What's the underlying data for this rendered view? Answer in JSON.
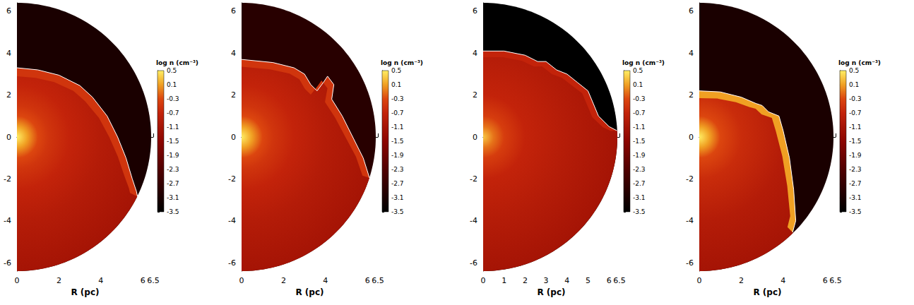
{
  "chart_data": [
    {
      "type": "density_map",
      "x_label": "R (pc)",
      "xlim": [
        0,
        6.5
      ],
      "xticks": [
        0,
        2,
        4,
        6
      ],
      "ylim": [
        -6.4,
        6.4
      ],
      "yticks": [
        -6,
        -4,
        -2,
        0,
        2,
        4,
        6
      ],
      "domain_radius": 6.4,
      "colorbar": {
        "label": "log n (cm⁻³)",
        "range": [
          -3.5,
          0.5
        ],
        "ticks": [
          0.5,
          0.1,
          -0.3,
          -0.7,
          -1.1,
          -1.5,
          -1.9,
          -2.3,
          -2.7,
          -3.1,
          -3.5
        ]
      },
      "ambient": -3.1,
      "shell": -0.5,
      "shell_thickness": 0.4,
      "profile": [
        [
          0,
          0.5
        ],
        [
          0.5,
          0.1
        ],
        [
          1,
          -0.3
        ],
        [
          1.5,
          -0.5
        ],
        [
          2.5,
          -0.7
        ],
        [
          4,
          -0.9
        ],
        [
          6.4,
          -1.1
        ]
      ],
      "front": [
        [
          0,
          3.3
        ],
        [
          1,
          3.2
        ],
        [
          2,
          2.95
        ],
        [
          3,
          2.45
        ],
        [
          3.6,
          1.9
        ],
        [
          4.3,
          1.0
        ],
        [
          4.8,
          0
        ],
        [
          5.2,
          -1
        ],
        [
          5.5,
          -2
        ],
        [
          5.7,
          -2.6
        ],
        [
          5.75,
          -2.85
        ]
      ]
    },
    {
      "type": "density_map",
      "x_label": "R (pc)",
      "xlim": [
        0,
        6.5
      ],
      "xticks": [
        0,
        2,
        4,
        6
      ],
      "ylim": [
        -6.4,
        6.4
      ],
      "yticks": [
        -6,
        -4,
        -2,
        0,
        2,
        4,
        6
      ],
      "domain_radius": 6.4,
      "colorbar": {
        "label": "log n (cm⁻³)",
        "range": [
          -3.5,
          0.5
        ],
        "ticks": [
          0.5,
          0.1,
          -0.3,
          -0.7,
          -1.1,
          -1.5,
          -1.9,
          -2.3,
          -2.7,
          -3.1,
          -3.5
        ]
      },
      "ambient": -2.9,
      "shell": -0.5,
      "shell_thickness": 0.35,
      "profile": [
        [
          0,
          0.5
        ],
        [
          0.5,
          0.1
        ],
        [
          1,
          -0.3
        ],
        [
          1.5,
          -0.5
        ],
        [
          2.5,
          -0.7
        ],
        [
          4,
          -0.9
        ],
        [
          6.4,
          -1.1
        ]
      ],
      "front": [
        [
          0,
          3.7
        ],
        [
          1.5,
          3.55
        ],
        [
          2.5,
          3.3
        ],
        [
          3,
          3.0
        ],
        [
          3.3,
          2.5
        ],
        [
          3.6,
          2.2
        ],
        [
          3.9,
          2.6
        ],
        [
          4.1,
          2.9
        ],
        [
          4.4,
          2.5
        ],
        [
          4.3,
          1.8
        ],
        [
          4.8,
          1.0
        ],
        [
          5.3,
          0
        ],
        [
          5.8,
          -1
        ],
        [
          6.1,
          -1.95
        ]
      ]
    },
    {
      "type": "density_map",
      "x_label": "R (pc)",
      "xlim": [
        0,
        6.5
      ],
      "xticks": [
        0,
        1,
        2,
        3,
        4,
        5,
        6
      ],
      "ylim": [
        -6.4,
        6.4
      ],
      "yticks": [
        -6,
        -4,
        -2,
        0,
        2,
        4,
        6
      ],
      "domain_radius": 6.4,
      "colorbar": {
        "label": "log n (cm⁻³)",
        "range": [
          -3.5,
          0.5
        ],
        "ticks": [
          0.5,
          0.1,
          -0.3,
          -0.7,
          -1.1,
          -1.5,
          -1.9,
          -2.3,
          -2.7,
          -3.1,
          -3.5
        ]
      },
      "ambient": -3.5,
      "shell": -0.7,
      "shell_thickness": 0.3,
      "profile": [
        [
          0,
          0.3
        ],
        [
          0.5,
          -0.1
        ],
        [
          1,
          -0.4
        ],
        [
          2,
          -0.7
        ],
        [
          4,
          -0.9
        ],
        [
          6.4,
          -1.1
        ]
      ],
      "front": [
        [
          0,
          4.1
        ],
        [
          1,
          4.1
        ],
        [
          2,
          3.9
        ],
        [
          2.6,
          3.6
        ],
        [
          3,
          3.6
        ],
        [
          3.5,
          3.2
        ],
        [
          4,
          3.0
        ],
        [
          4.5,
          2.6
        ],
        [
          5,
          2.2
        ],
        [
          5.5,
          1.0
        ],
        [
          6,
          0.5
        ],
        [
          6.38,
          0.3
        ]
      ]
    },
    {
      "type": "density_map",
      "x_label": "R (pc)",
      "xlim": [
        0,
        6.5
      ],
      "xticks": [
        0,
        2,
        4,
        6
      ],
      "ylim": [
        -6.4,
        6.4
      ],
      "yticks": [
        -6,
        -4,
        -2,
        0,
        2,
        4,
        6
      ],
      "domain_radius": 6.4,
      "colorbar": {
        "label": "log n (cm⁻³)",
        "range": [
          -3.5,
          0.5
        ],
        "ticks": [
          0.5,
          0.1,
          -0.3,
          -0.7,
          -1.1,
          -1.5,
          -1.9,
          -2.3,
          -2.7,
          -3.1,
          -3.5
        ]
      },
      "ambient": -3.1,
      "shell": 0.1,
      "shell_thickness": 0.35,
      "profile": [
        [
          0,
          0.5
        ],
        [
          0.5,
          0.1
        ],
        [
          1,
          -0.3
        ],
        [
          2,
          -0.6
        ],
        [
          4,
          -0.9
        ],
        [
          6.4,
          -1.1
        ]
      ],
      "front": [
        [
          0,
          2.2
        ],
        [
          1,
          2.15
        ],
        [
          2,
          1.9
        ],
        [
          2.7,
          1.6
        ],
        [
          3,
          1.5
        ],
        [
          3.3,
          1.2
        ],
        [
          3.8,
          1.0
        ],
        [
          4.0,
          0.3
        ],
        [
          4.3,
          -1
        ],
        [
          4.5,
          -2.5
        ],
        [
          4.6,
          -4
        ],
        [
          4.45,
          -4.55
        ]
      ]
    }
  ]
}
